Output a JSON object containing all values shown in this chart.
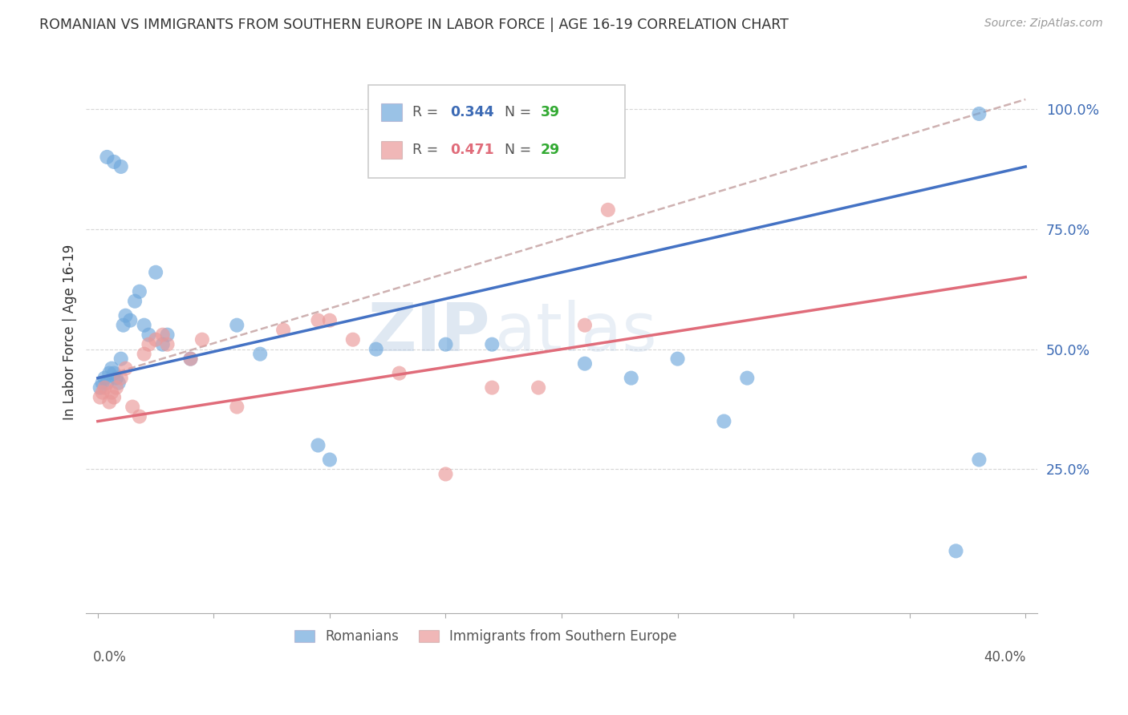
{
  "title": "ROMANIAN VS IMMIGRANTS FROM SOUTHERN EUROPE IN LABOR FORCE | AGE 16-19 CORRELATION CHART",
  "source": "Source: ZipAtlas.com",
  "ylabel": "In Labor Force | Age 16-19",
  "xlim": [
    0.0,
    0.4
  ],
  "ylim": [
    0.0,
    1.1
  ],
  "yticks": [
    0.25,
    0.5,
    0.75,
    1.0
  ],
  "ytick_labels": [
    "25.0%",
    "50.0%",
    "75.0%",
    "100.0%"
  ],
  "blue_color": "#6fa8dc",
  "pink_color": "#ea9999",
  "line_blue": "#4472c4",
  "line_pink": "#e06c7a",
  "line_dashed_color": "#c9a9a9",
  "watermark_zip": "ZIP",
  "watermark_atlas": "atlas",
  "blue_line_x0": 0.0,
  "blue_line_y0": 0.44,
  "blue_line_x1": 0.4,
  "blue_line_y1": 0.88,
  "pink_line_x0": 0.0,
  "pink_line_y0": 0.35,
  "pink_line_x1": 0.4,
  "pink_line_y1": 0.65,
  "dash_line_x0": 0.0,
  "dash_line_y0": 0.44,
  "dash_line_x1": 0.4,
  "dash_line_y1": 1.02,
  "romanians_x": [
    0.001,
    0.002,
    0.003,
    0.004,
    0.005,
    0.006,
    0.007,
    0.008,
    0.009,
    0.01,
    0.011,
    0.012,
    0.014,
    0.016,
    0.018,
    0.02,
    0.022,
    0.025,
    0.028,
    0.03,
    0.04,
    0.06,
    0.07,
    0.095,
    0.1,
    0.12,
    0.15,
    0.17,
    0.21,
    0.23,
    0.25,
    0.28,
    0.38,
    0.004,
    0.007,
    0.01,
    0.27,
    0.38,
    0.37
  ],
  "romanians_y": [
    0.42,
    0.43,
    0.44,
    0.43,
    0.45,
    0.46,
    0.45,
    0.44,
    0.43,
    0.48,
    0.55,
    0.57,
    0.56,
    0.6,
    0.62,
    0.55,
    0.53,
    0.66,
    0.51,
    0.53,
    0.48,
    0.55,
    0.49,
    0.3,
    0.27,
    0.5,
    0.51,
    0.51,
    0.47,
    0.44,
    0.48,
    0.44,
    0.27,
    0.9,
    0.89,
    0.88,
    0.35,
    0.99,
    0.08
  ],
  "immigrants_x": [
    0.001,
    0.002,
    0.003,
    0.005,
    0.006,
    0.007,
    0.008,
    0.01,
    0.012,
    0.015,
    0.018,
    0.02,
    0.022,
    0.025,
    0.028,
    0.03,
    0.04,
    0.045,
    0.06,
    0.08,
    0.095,
    0.1,
    0.11,
    0.13,
    0.15,
    0.17,
    0.19,
    0.21,
    0.22
  ],
  "immigrants_y": [
    0.4,
    0.41,
    0.42,
    0.39,
    0.41,
    0.4,
    0.42,
    0.44,
    0.46,
    0.38,
    0.36,
    0.49,
    0.51,
    0.52,
    0.53,
    0.51,
    0.48,
    0.52,
    0.38,
    0.54,
    0.56,
    0.56,
    0.52,
    0.45,
    0.24,
    0.42,
    0.42,
    0.55,
    0.79
  ]
}
